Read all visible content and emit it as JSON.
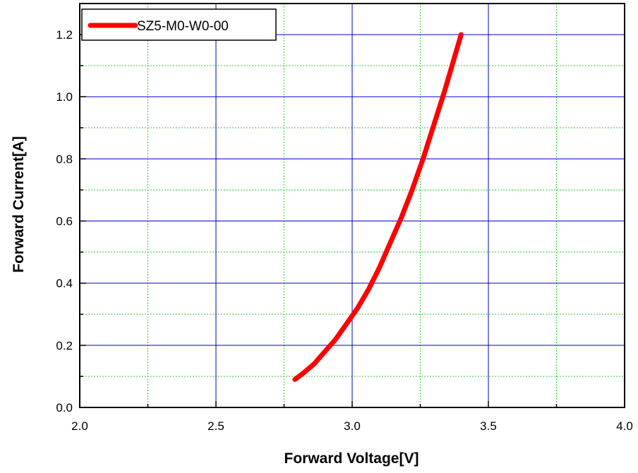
{
  "chart_data": {
    "type": "line",
    "title": "",
    "xlabel": "Forward Voltage[V]",
    "ylabel": "Forward Current[A]",
    "xlim": [
      2.0,
      4.0
    ],
    "ylim": [
      0.0,
      1.3
    ],
    "x_ticks": [
      "2.0",
      "2.5",
      "3.0",
      "3.5",
      "4.0"
    ],
    "y_ticks": [
      "0.0",
      "0.2",
      "0.4",
      "0.6",
      "0.8",
      "1.0",
      "1.2"
    ],
    "grid": true,
    "legend_position": "top-left",
    "series": [
      {
        "name": "SZ5-M0-W0-00",
        "color": "#ff0000",
        "x": [
          2.79,
          2.82,
          2.86,
          2.9,
          2.94,
          2.98,
          3.02,
          3.06,
          3.1,
          3.14,
          3.18,
          3.22,
          3.26,
          3.3,
          3.34,
          3.37,
          3.4
        ],
        "y": [
          0.09,
          0.11,
          0.14,
          0.18,
          0.22,
          0.27,
          0.32,
          0.38,
          0.45,
          0.53,
          0.61,
          0.7,
          0.8,
          0.91,
          1.02,
          1.11,
          1.2
        ]
      }
    ]
  },
  "colors": {
    "major_grid": "#0000cc",
    "minor_grid": "#33cc33",
    "axis": "#000000"
  }
}
